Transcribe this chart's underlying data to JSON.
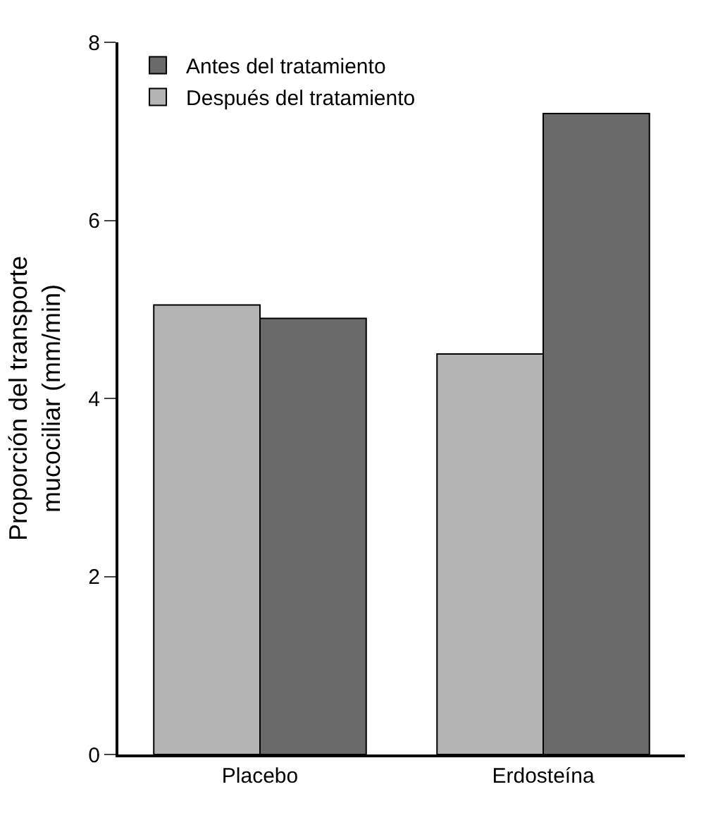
{
  "chart_data": {
    "type": "bar",
    "ylabel": "Proporción del transporte\nmucociliar (mm/min)",
    "categories": [
      "Placebo",
      "Erdosteína"
    ],
    "series": [
      {
        "name": "Después del tratamiento",
        "color": "#b4b4b4",
        "values": [
          5.05,
          4.5
        ]
      },
      {
        "name": "Antes del tratamiento",
        "color": "#6a6a6a",
        "values": [
          4.9,
          7.2
        ]
      }
    ],
    "ylim": [
      0,
      8
    ],
    "yticks": [
      0,
      2,
      4,
      6,
      8
    ],
    "legend": "top left"
  }
}
